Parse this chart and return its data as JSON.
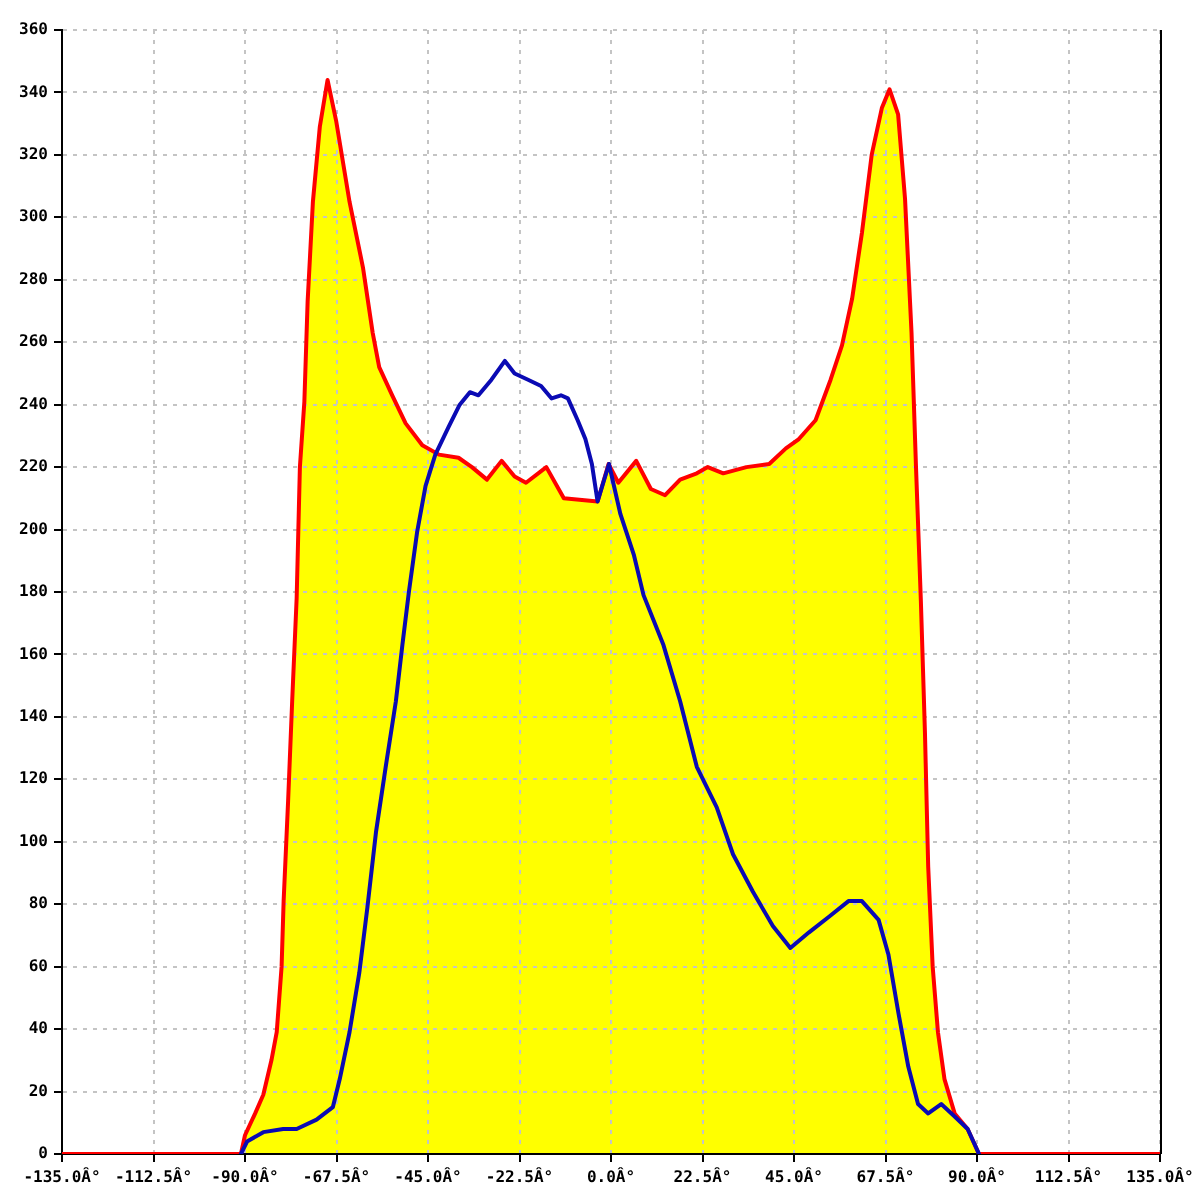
{
  "chart_data": {
    "type": "area",
    "color": "#ffff00",
    "grid": true,
    "xlim": [
      -135,
      135
    ],
    "xticks": [
      {
        "value": -135,
        "label": "-135.0Â°"
      },
      {
        "value": -112.5,
        "label": "-112.5Â°"
      },
      {
        "value": -90,
        "label": "-90.0Â°"
      },
      {
        "value": -67.5,
        "label": "-67.5Â°"
      },
      {
        "value": -45,
        "label": "-45.0Â°"
      },
      {
        "value": -22.5,
        "label": "-22.5Â°"
      },
      {
        "value": 0,
        "label": "0.0Â°"
      },
      {
        "value": 22.5,
        "label": "22.5Â°"
      },
      {
        "value": 45,
        "label": "45.0Â°"
      },
      {
        "value": 67.5,
        "label": "67.5Â°"
      },
      {
        "value": 90,
        "label": "90.0Â°"
      },
      {
        "value": 112.5,
        "label": "112.5Â°"
      },
      {
        "value": 135,
        "label": "135.0Â°"
      }
    ],
    "ylim": [
      0,
      360
    ],
    "yticks": [
      0,
      20,
      40,
      60,
      80,
      100,
      120,
      140,
      160,
      180,
      200,
      220,
      240,
      260,
      280,
      300,
      320,
      340,
      360
    ],
    "series": [
      {
        "color": "#ff0000",
        "x": [
          -135,
          -91,
          -90,
          -87.5,
          -85.5,
          -83.5,
          -82.2,
          -81,
          -80.5,
          -79.4,
          -78.4,
          -77.3,
          -76.5,
          -75.4,
          -74.6,
          -73.3,
          -71.6,
          -69.7,
          -67.6,
          -64.3,
          -61,
          -58.6,
          -57,
          -53.8,
          -50.5,
          -46.4,
          -42.3,
          -37.5,
          -34.2,
          -30.5,
          -26.9,
          -23.7,
          -20.9,
          -15.9,
          -11.6,
          -3.3,
          -0.6,
          1.8,
          6.2,
          9.8,
          13.3,
          17,
          21.1,
          23.8,
          27.6,
          33.3,
          38.9,
          43,
          46.2,
          50.3,
          54,
          56.8,
          59.3,
          61.7,
          64.1,
          66.6,
          68.5,
          70.6,
          72.3,
          73.9,
          75,
          76.2,
          77.2,
          78,
          79.1,
          80.4,
          82,
          84.5,
          87.7,
          90.5,
          135
        ],
        "values": [
          0,
          0,
          6,
          13,
          19,
          30,
          39,
          60,
          81,
          113,
          145,
          178,
          220,
          241,
          273,
          305,
          329,
          344,
          331,
          305,
          284,
          263,
          252,
          243,
          234,
          227,
          224,
          223,
          220,
          216,
          222,
          217,
          215,
          220,
          210,
          209,
          221,
          215,
          222,
          213,
          211,
          216,
          218,
          220,
          218,
          220,
          221,
          226,
          229,
          235,
          248,
          259,
          274,
          295,
          320,
          335,
          341,
          333,
          306,
          263,
          220,
          177,
          135,
          92,
          60,
          39,
          24,
          13,
          8,
          0,
          0
        ]
      },
      {
        "type": "line",
        "color": "#0a0ab4",
        "x": [
          -91,
          -89.5,
          -85.5,
          -80.6,
          -77.3,
          -72.4,
          -68.4,
          -66.7,
          -64.3,
          -61.9,
          -59.9,
          -57.8,
          -55.4,
          -52.9,
          -51.3,
          -49.7,
          -47.7,
          -45.6,
          -43.2,
          -39.9,
          -37.2,
          -34.7,
          -32.6,
          -29.4,
          -26.1,
          -23.7,
          -20.4,
          -17.2,
          -14.6,
          -12.3,
          -10.6,
          -8.2,
          -6.3,
          -4.7,
          -3.3,
          -0.5,
          2.3,
          5.6,
          8,
          12.9,
          17,
          21.1,
          26,
          30,
          34.9,
          39.8,
          44.1,
          48.7,
          53.6,
          58.4,
          61.7,
          65.8,
          68.2,
          70.7,
          73.1,
          75.5,
          78,
          81.2,
          84.5,
          87.7,
          90.5
        ],
        "values": [
          0,
          4,
          7,
          8,
          8,
          11,
          15,
          24,
          39,
          58,
          79,
          103,
          124,
          145,
          163,
          180,
          199,
          214,
          224,
          233,
          240,
          244,
          243,
          248,
          254,
          250,
          248,
          246,
          242,
          243,
          242,
          235,
          229,
          221,
          209,
          221,
          205,
          192,
          179,
          163,
          145,
          124,
          111,
          96,
          84,
          73,
          66,
          71,
          76,
          81,
          81,
          75,
          64,
          45,
          28,
          16,
          13,
          16,
          12,
          8,
          0
        ]
      }
    ]
  }
}
